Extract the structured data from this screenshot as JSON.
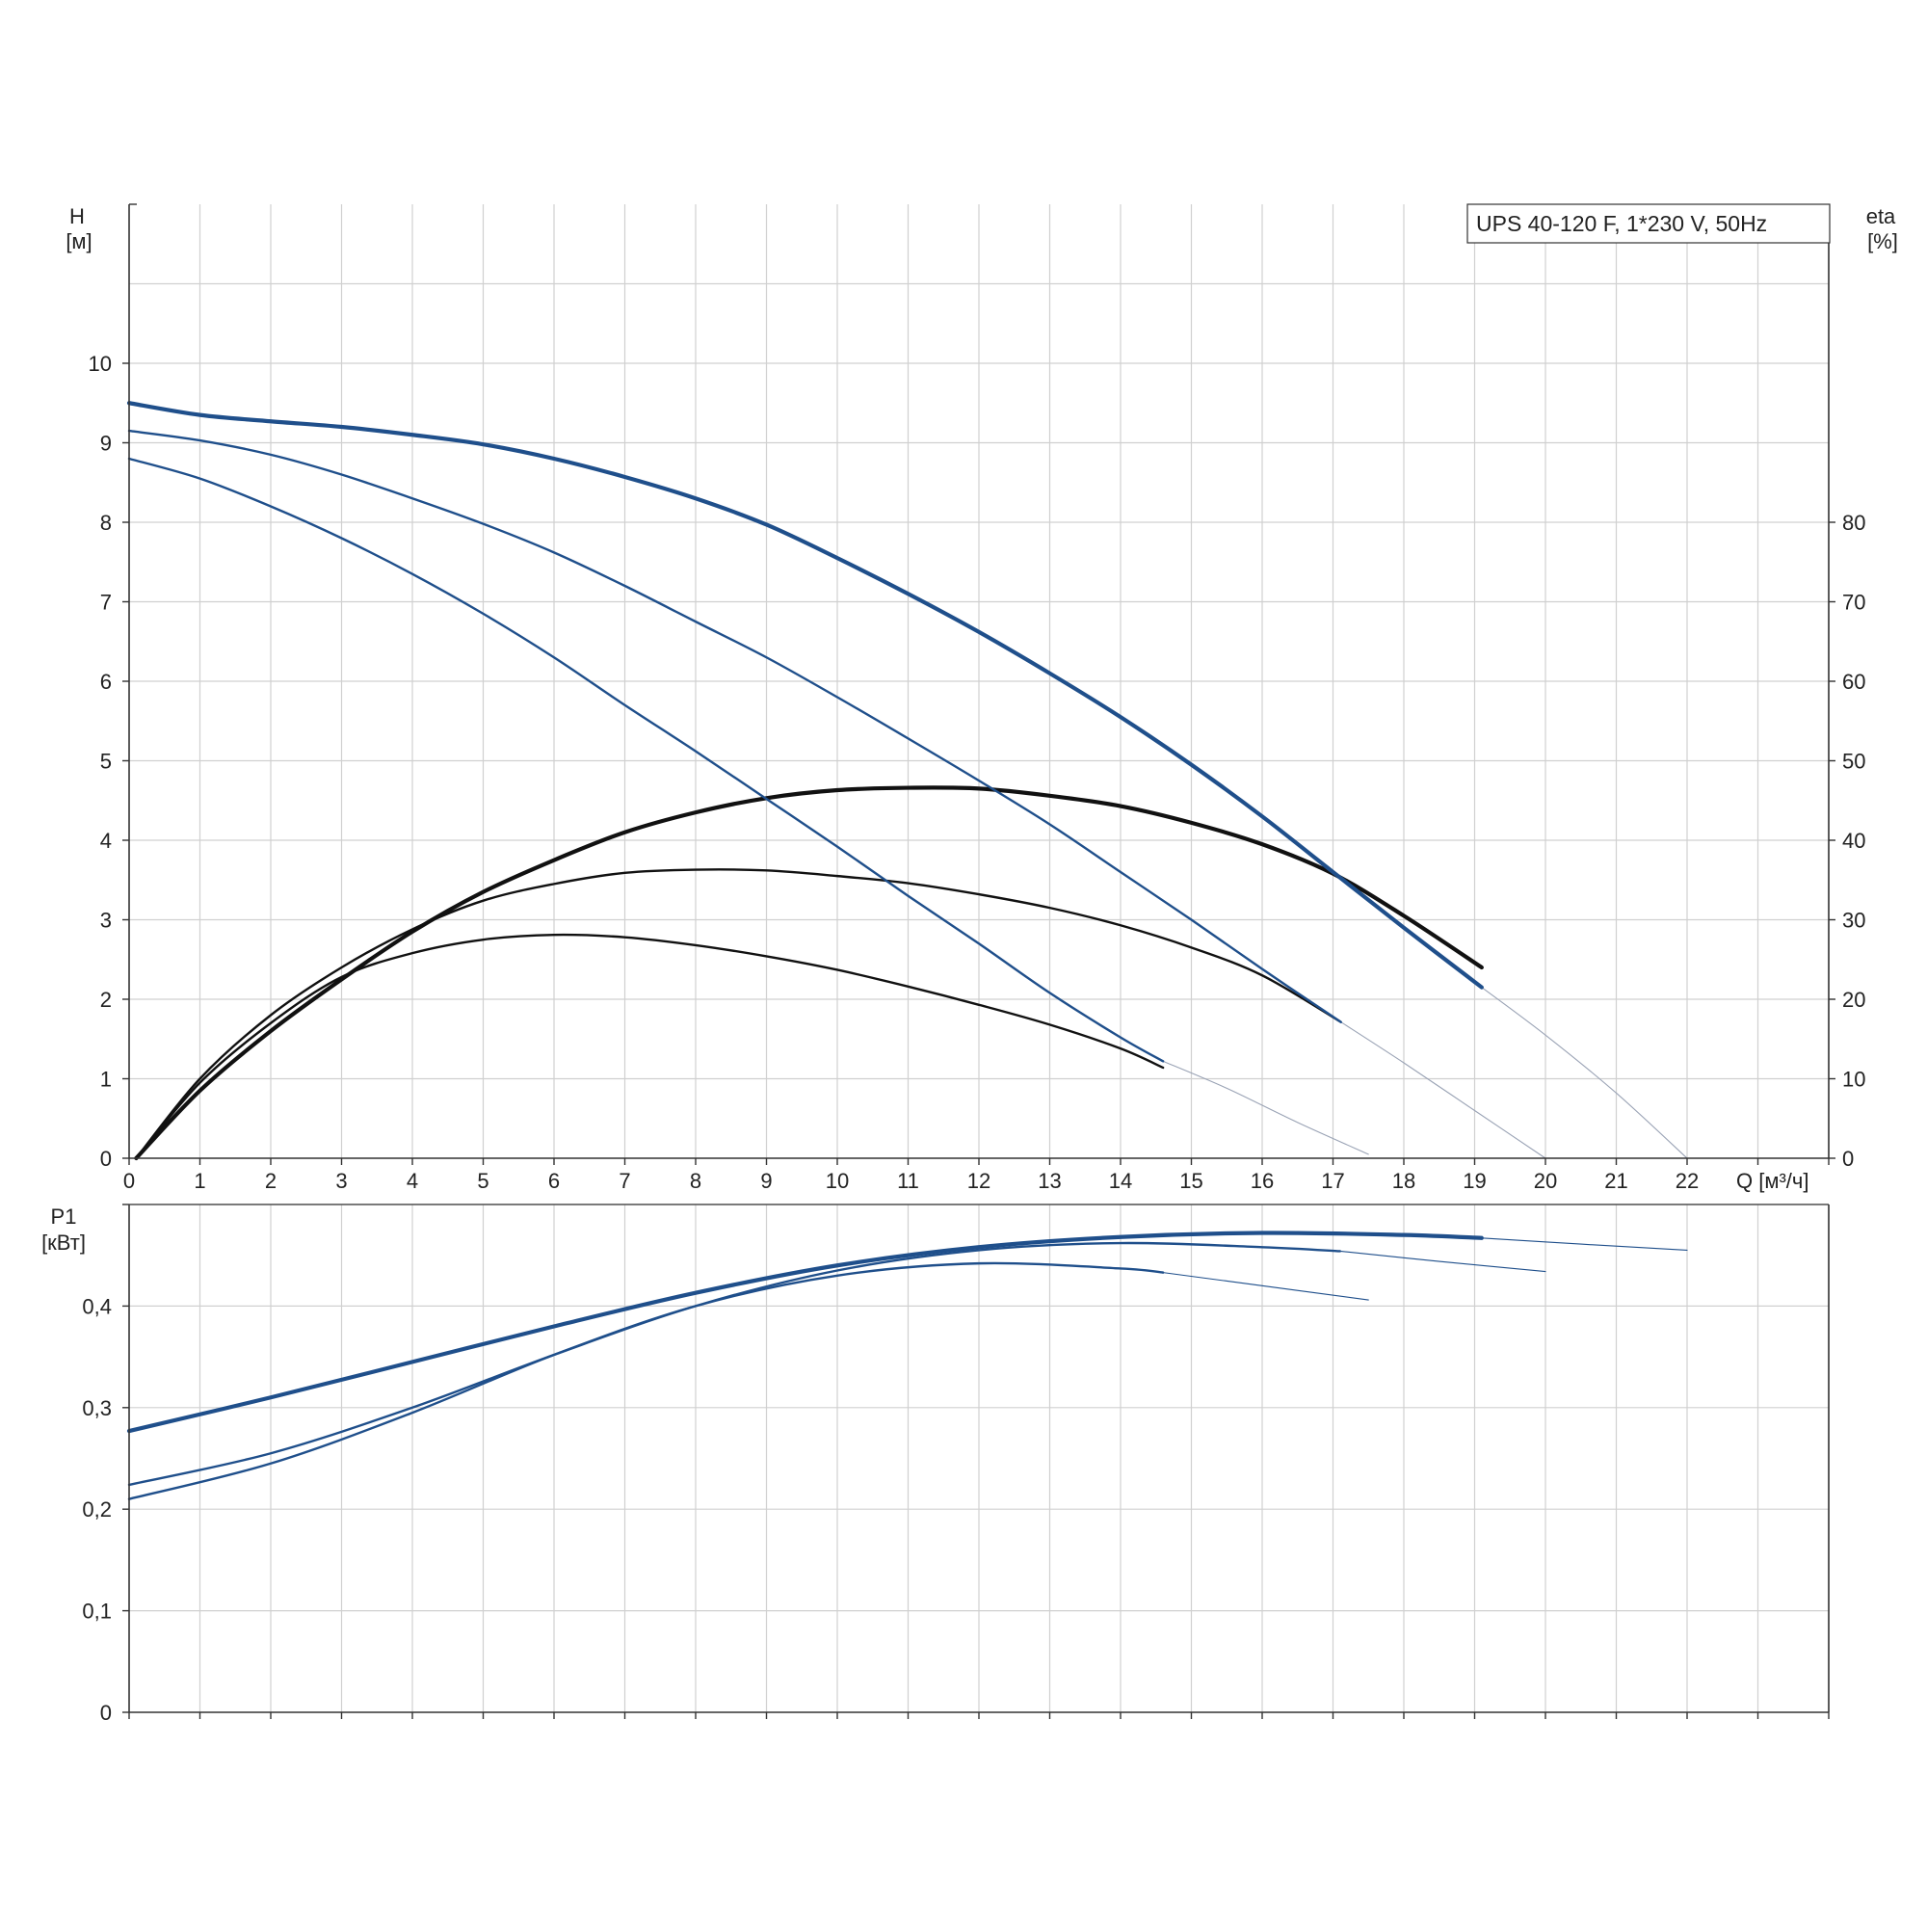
{
  "colors": {
    "grid": "#d0d0d0",
    "axis": "#333333",
    "head_curve": "#1f4f8b",
    "eta_curve": "#111111",
    "extension": "#9aa3b5"
  },
  "chart_data": [
    {
      "type": "line",
      "panel": "head-efficiency",
      "title": "UPS 40-120 F, 1*230 V, 50Hz",
      "x_axis": {
        "label": "Q [м³/ч]",
        "range": [
          0,
          24
        ],
        "ticks": [
          "0",
          "1",
          "2",
          "3",
          "4",
          "5",
          "6",
          "7",
          "8",
          "9",
          "10",
          "11",
          "12",
          "13",
          "14",
          "15",
          "16",
          "17",
          "18",
          "19",
          "20",
          "21",
          "22"
        ]
      },
      "y_axis_left": {
        "label_line1": "H",
        "label_line2": "[м]",
        "range": [
          0,
          12
        ],
        "ticks": [
          "0",
          "1",
          "2",
          "3",
          "4",
          "5",
          "6",
          "7",
          "8",
          "9",
          "10"
        ]
      },
      "y_axis_right": {
        "label_line1": "eta",
        "label_line2": "[%]",
        "range": [
          0,
          120
        ],
        "ticks": [
          "0",
          "10",
          "20",
          "30",
          "40",
          "50",
          "60",
          "70",
          "80"
        ]
      },
      "grid": true,
      "series": [
        {
          "kind": "head",
          "axis": "left",
          "weight": "bold",
          "x": [
            0,
            1,
            2,
            3,
            4,
            5,
            6,
            7,
            8,
            9,
            10,
            11,
            12,
            13,
            14,
            15,
            16,
            17,
            18,
            19.1
          ],
          "y": [
            9.5,
            9.35,
            9.27,
            9.2,
            9.1,
            8.98,
            8.8,
            8.57,
            8.3,
            7.97,
            7.55,
            7.1,
            6.62,
            6.1,
            5.55,
            4.95,
            4.3,
            3.6,
            2.9,
            2.15
          ]
        },
        {
          "kind": "head",
          "axis": "left",
          "weight": "normal",
          "x": [
            0,
            1,
            2,
            3,
            4,
            5,
            6,
            7,
            8,
            9,
            10,
            11,
            12,
            13,
            14,
            15,
            16,
            17,
            17.1
          ],
          "y": [
            9.15,
            9.03,
            8.85,
            8.6,
            8.3,
            7.98,
            7.62,
            7.2,
            6.75,
            6.3,
            5.8,
            5.28,
            4.75,
            4.2,
            3.6,
            3.0,
            2.38,
            1.78,
            1.72
          ]
        },
        {
          "kind": "head",
          "axis": "left",
          "weight": "normal",
          "x": [
            0,
            1,
            2,
            3,
            4,
            5,
            6,
            7,
            8,
            9,
            10,
            11,
            12,
            13,
            14,
            14.6
          ],
          "y": [
            8.8,
            8.55,
            8.2,
            7.8,
            7.35,
            6.85,
            6.3,
            5.7,
            5.12,
            4.52,
            3.92,
            3.3,
            2.7,
            2.08,
            1.52,
            1.22
          ]
        },
        {
          "kind": "head-extension",
          "axis": "left",
          "weight": "thin",
          "x": [
            19.1,
            20,
            21,
            22
          ],
          "y": [
            2.15,
            1.55,
            0.82,
            0.0
          ]
        },
        {
          "kind": "head-extension",
          "axis": "left",
          "weight": "thin",
          "x": [
            17.1,
            18,
            19,
            20
          ],
          "y": [
            1.72,
            1.2,
            0.6,
            0.0
          ]
        },
        {
          "kind": "head-extension",
          "axis": "left",
          "weight": "thin",
          "x": [
            14.6,
            15.5,
            16.5,
            17.5
          ],
          "y": [
            1.22,
            0.88,
            0.45,
            0.05
          ]
        },
        {
          "kind": "eta",
          "axis": "right",
          "weight": "bold",
          "x": [
            0.1,
            1,
            2,
            3,
            4,
            5,
            6,
            7,
            8,
            9,
            10,
            11,
            12,
            13,
            14,
            15,
            16,
            17,
            18,
            19.1
          ],
          "y": [
            0,
            8.5,
            16,
            22.5,
            28.5,
            33.5,
            37.5,
            41,
            43.5,
            45.3,
            46.3,
            46.6,
            46.5,
            45.6,
            44.3,
            42.2,
            39.5,
            35.8,
            30.5,
            24
          ]
        },
        {
          "kind": "eta",
          "axis": "right",
          "weight": "normal",
          "x": [
            0.1,
            1,
            2,
            3,
            4,
            5,
            6,
            7,
            8,
            9,
            10,
            11,
            12,
            13,
            14,
            15,
            16,
            17.1
          ],
          "y": [
            0,
            10,
            18,
            24,
            28.8,
            32.4,
            34.5,
            35.9,
            36.3,
            36.2,
            35.5,
            34.6,
            33.2,
            31.5,
            29.3,
            26.5,
            23,
            17.2
          ]
        },
        {
          "kind": "eta",
          "axis": "right",
          "weight": "normal",
          "x": [
            0.1,
            1,
            2,
            3,
            4,
            5,
            6,
            7,
            8,
            9,
            10,
            11,
            12,
            13,
            14,
            14.6
          ],
          "y": [
            0,
            9.5,
            17,
            22.8,
            25.8,
            27.5,
            28.1,
            27.8,
            26.8,
            25.4,
            23.7,
            21.6,
            19.3,
            16.8,
            13.8,
            11.4
          ]
        }
      ]
    },
    {
      "type": "line",
      "panel": "power",
      "x_axis": {
        "range": [
          0,
          24
        ]
      },
      "y_axis_left": {
        "label_line1": "P1",
        "label_line2": "[кВт]",
        "range": [
          0,
          0.5
        ],
        "ticks": [
          "0",
          "0,1",
          "0,2",
          "0,3",
          "0,4"
        ]
      },
      "grid": true,
      "series": [
        {
          "kind": "power",
          "weight": "bold",
          "x": [
            0,
            2,
            4,
            6,
            8,
            10,
            12,
            14,
            16,
            18,
            19.1
          ],
          "y": [
            0.277,
            0.31,
            0.345,
            0.38,
            0.413,
            0.44,
            0.458,
            0.468,
            0.472,
            0.47,
            0.467
          ]
        },
        {
          "kind": "power",
          "weight": "normal",
          "x": [
            0,
            2,
            4,
            6,
            8,
            10,
            12,
            14,
            16,
            17.1
          ],
          "y": [
            0.224,
            0.255,
            0.3,
            0.352,
            0.4,
            0.435,
            0.455,
            0.462,
            0.458,
            0.454
          ]
        },
        {
          "kind": "power",
          "weight": "normal",
          "x": [
            0,
            2,
            4,
            6,
            8,
            10,
            12,
            14,
            14.6
          ],
          "y": [
            0.21,
            0.245,
            0.295,
            0.352,
            0.4,
            0.43,
            0.442,
            0.437,
            0.433
          ]
        },
        {
          "kind": "power-extension",
          "weight": "thin",
          "x": [
            19.1,
            20.5,
            22
          ],
          "y": [
            0.467,
            0.461,
            0.455
          ]
        },
        {
          "kind": "power-extension",
          "weight": "thin",
          "x": [
            17.1,
            18.5,
            20
          ],
          "y": [
            0.454,
            0.444,
            0.434
          ]
        },
        {
          "kind": "power-extension",
          "weight": "thin",
          "x": [
            14.6,
            16,
            17.5
          ],
          "y": [
            0.433,
            0.42,
            0.406
          ]
        }
      ]
    }
  ]
}
